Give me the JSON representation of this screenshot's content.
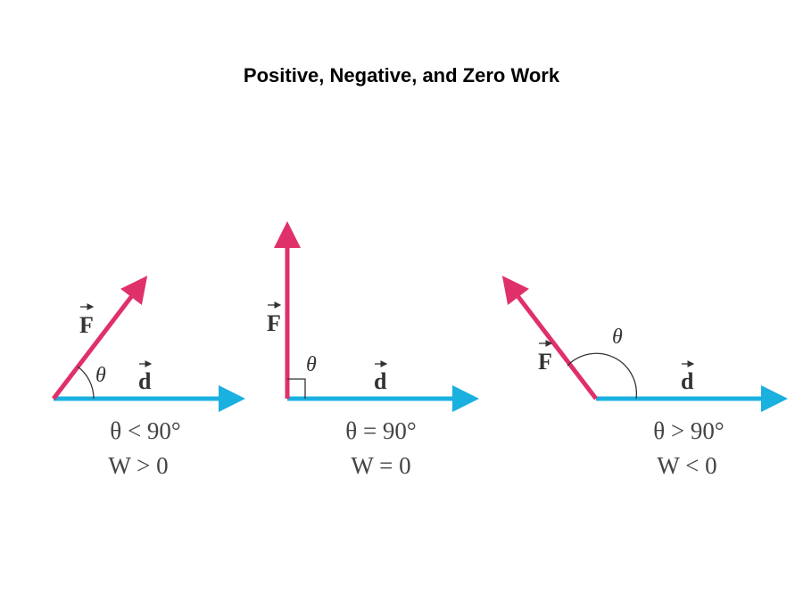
{
  "title": "Positive, Negative, and Zero Work",
  "panels": [
    {
      "force": "F",
      "displacement": "d",
      "angle": "θ",
      "condition": "θ < 90°",
      "work": "W > 0"
    },
    {
      "force": "F",
      "displacement": "d",
      "angle": "θ",
      "condition": "θ = 90°",
      "work": "W = 0"
    },
    {
      "force": "F",
      "displacement": "d",
      "angle": "θ",
      "condition": "θ > 90°",
      "work": "W < 0"
    }
  ]
}
